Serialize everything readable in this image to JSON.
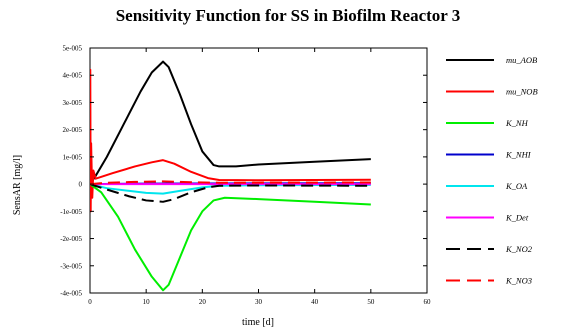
{
  "title": "Sensitivity Function for SS in Biofilm Reactor 3",
  "chart_data": {
    "type": "line",
    "title": "Sensitivity Function for SS in Biofilm Reactor 3",
    "xlabel": "time [d]",
    "ylabel": "SensAR [mg/l]",
    "xlim": [
      0,
      60
    ],
    "ylim": [
      -4e-05,
      5e-05
    ],
    "x_ticks": [
      0,
      10,
      20,
      30,
      40,
      50,
      60
    ],
    "x_tick_labels": [
      "0",
      "10",
      "20",
      "30",
      "40",
      "50",
      "60"
    ],
    "y_ticks": [
      -4e-05,
      -3e-05,
      -2e-05,
      -1e-05,
      0,
      1e-05,
      2e-05,
      3e-05,
      4e-05,
      5e-05
    ],
    "y_tick_labels": [
      "-4e-005",
      "-3e-005",
      "-2e-005",
      "-1e-005",
      "0",
      "1e-005",
      "2e-005",
      "3e-005",
      "4e-005",
      "5e-005"
    ],
    "grid": false,
    "legend_position": "right",
    "series": [
      {
        "name": "mu_AOB",
        "color": "#000000",
        "dash": "solid",
        "points": [
          [
            0,
            0
          ],
          [
            1,
            3e-06
          ],
          [
            3,
            1e-05
          ],
          [
            6,
            2.2e-05
          ],
          [
            9,
            3.4e-05
          ],
          [
            11,
            4.1e-05
          ],
          [
            13,
            4.5e-05
          ],
          [
            14,
            4.3e-05
          ],
          [
            16,
            3.3e-05
          ],
          [
            18,
            2.2e-05
          ],
          [
            20,
            1.2e-05
          ],
          [
            22,
            7e-06
          ],
          [
            23,
            6.5e-06
          ],
          [
            26,
            6.5e-06
          ],
          [
            30,
            7.2e-06
          ],
          [
            40,
            8.2e-06
          ],
          [
            50,
            9.2e-06
          ]
        ]
      },
      {
        "name": "mu_NOB",
        "color": "#ff0000",
        "dash": "solid",
        "points": [
          [
            0,
            0
          ],
          [
            0.05,
            4.2e-05
          ],
          [
            0.12,
            -1e-05
          ],
          [
            0.2,
            1.5e-05
          ],
          [
            0.4,
            -5e-06
          ],
          [
            0.6,
            5e-06
          ],
          [
            1,
            2e-06
          ],
          [
            4,
            4e-06
          ],
          [
            8,
            6.5e-06
          ],
          [
            11,
            8e-06
          ],
          [
            13,
            8.8e-06
          ],
          [
            15,
            7.5e-06
          ],
          [
            18,
            4.5e-06
          ],
          [
            21,
            2.2e-06
          ],
          [
            23,
            1.5e-06
          ],
          [
            30,
            1.4e-06
          ],
          [
            50,
            1.6e-06
          ]
        ]
      },
      {
        "name": "K_NH",
        "color": "#00ee00",
        "dash": "solid",
        "points": [
          [
            0,
            0
          ],
          [
            2,
            -3e-06
          ],
          [
            5,
            -1.2e-05
          ],
          [
            8,
            -2.4e-05
          ],
          [
            11,
            -3.4e-05
          ],
          [
            13,
            -3.9e-05
          ],
          [
            14,
            -3.7e-05
          ],
          [
            16,
            -2.7e-05
          ],
          [
            18,
            -1.7e-05
          ],
          [
            20,
            -1e-05
          ],
          [
            22,
            -6e-06
          ],
          [
            24,
            -5e-06
          ],
          [
            30,
            -5.5e-06
          ],
          [
            40,
            -6.5e-06
          ],
          [
            50,
            -7.5e-06
          ]
        ]
      },
      {
        "name": "K_NHI",
        "color": "#0000cc",
        "dash": "solid",
        "points": [
          [
            0,
            0
          ],
          [
            10,
            2e-07
          ],
          [
            50,
            3e-07
          ]
        ]
      },
      {
        "name": "K_OA",
        "color": "#00e5ee",
        "dash": "solid",
        "points": [
          [
            0,
            0
          ],
          [
            3,
            -1.5e-06
          ],
          [
            7,
            -2.5e-06
          ],
          [
            10,
            -3.2e-06
          ],
          [
            13,
            -3.5e-06
          ],
          [
            16,
            -2.5e-06
          ],
          [
            20,
            -1.2e-06
          ],
          [
            23,
            -6e-07
          ],
          [
            30,
            -4e-07
          ],
          [
            50,
            -3e-07
          ]
        ]
      },
      {
        "name": "K_Det",
        "color": "#ff00ff",
        "dash": "solid",
        "points": [
          [
            0,
            0
          ],
          [
            50,
            0
          ]
        ]
      },
      {
        "name": "K_NO2",
        "color": "#000000",
        "dash": "dashed",
        "points": [
          [
            0,
            0
          ],
          [
            3,
            -2e-06
          ],
          [
            7,
            -4.5e-06
          ],
          [
            10,
            -6e-06
          ],
          [
            13,
            -6.5e-06
          ],
          [
            15,
            -5.5e-06
          ],
          [
            18,
            -3e-06
          ],
          [
            21,
            -1.2e-06
          ],
          [
            23,
            -6e-07
          ],
          [
            30,
            -5e-07
          ],
          [
            50,
            -6e-07
          ]
        ]
      },
      {
        "name": "K_NO3",
        "color": "#ff0000",
        "dash": "dashed",
        "points": [
          [
            0,
            0
          ],
          [
            3,
            5e-07
          ],
          [
            8,
            8e-07
          ],
          [
            13,
            1e-06
          ],
          [
            18,
            7e-07
          ],
          [
            23,
            5e-07
          ],
          [
            50,
            6e-07
          ]
        ]
      }
    ]
  }
}
